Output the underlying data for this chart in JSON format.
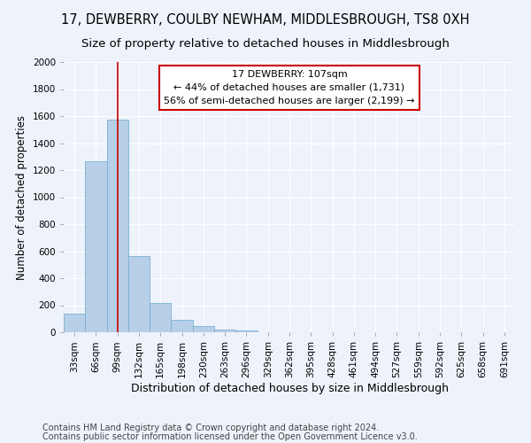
{
  "title1": "17, DEWBERRY, COULBY NEWHAM, MIDDLESBROUGH, TS8 0XH",
  "title2": "Size of property relative to detached houses in Middlesbrough",
  "xlabel": "Distribution of detached houses by size in Middlesbrough",
  "ylabel": "Number of detached properties",
  "bin_labels": [
    "33sqm",
    "66sqm",
    "99sqm",
    "132sqm",
    "165sqm",
    "198sqm",
    "230sqm",
    "263sqm",
    "296sqm",
    "329sqm",
    "362sqm",
    "395sqm",
    "428sqm",
    "461sqm",
    "494sqm",
    "527sqm",
    "559sqm",
    "592sqm",
    "625sqm",
    "658sqm",
    "691sqm"
  ],
  "bar_heights": [
    140,
    1265,
    1575,
    565,
    215,
    90,
    48,
    22,
    14,
    0,
    0,
    0,
    0,
    0,
    0,
    0,
    0,
    0,
    0,
    0,
    0
  ],
  "bar_color": "#b8cfe8",
  "bar_edge_color": "#7aafd4",
  "vline_x": 2,
  "vline_color": "#cc0000",
  "annotation_text": "17 DEWBERRY: 107sqm\n← 44% of detached houses are smaller (1,731)\n56% of semi-detached houses are larger (2,199) →",
  "annotation_box_color": "#ffffff",
  "annotation_box_edge": "#cc0000",
  "ylim": [
    0,
    2000
  ],
  "yticks": [
    0,
    200,
    400,
    600,
    800,
    1000,
    1200,
    1400,
    1600,
    1800,
    2000
  ],
  "footer1": "Contains HM Land Registry data © Crown copyright and database right 2024.",
  "footer2": "Contains public sector information licensed under the Open Government Licence v3.0.",
  "bg_color": "#eef2fb",
  "grid_color": "#ffffff",
  "title1_fontsize": 10.5,
  "title2_fontsize": 9.5,
  "xlabel_fontsize": 9,
  "ylabel_fontsize": 8.5,
  "annotation_fontsize": 8,
  "tick_fontsize": 7.5,
  "footer_fontsize": 7
}
